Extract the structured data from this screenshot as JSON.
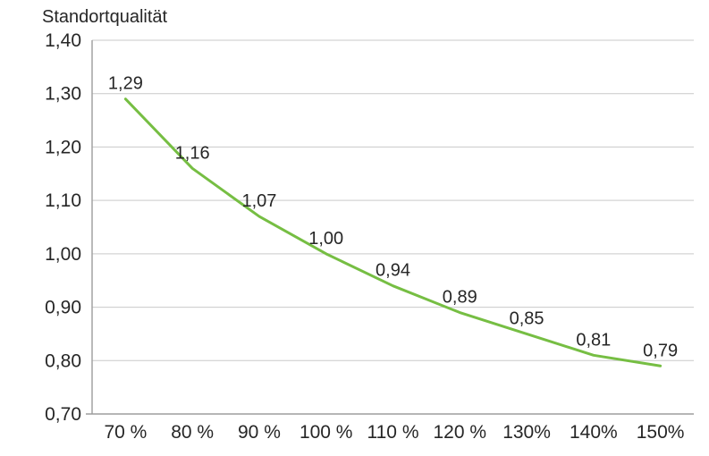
{
  "chart_data": {
    "type": "line",
    "title": "Standortqualität",
    "categories": [
      "70 %",
      "80 %",
      "90 %",
      "100 %",
      "110 %",
      "120 %",
      "130%",
      "140%",
      "150%"
    ],
    "series": [
      {
        "name": "Standortqualität",
        "values": [
          1.29,
          1.16,
          1.07,
          1.0,
          0.94,
          0.89,
          0.85,
          0.81,
          0.79
        ]
      }
    ],
    "point_labels": [
      "1,29",
      "1,16",
      "1,07",
      "1,00",
      "0,94",
      "0,89",
      "0,85",
      "0,81",
      "0,79"
    ],
    "y_ticks": [
      {
        "label": "1,40",
        "value": 1.4
      },
      {
        "label": "1,30",
        "value": 1.3
      },
      {
        "label": "1,20",
        "value": 1.2
      },
      {
        "label": "1,10",
        "value": 1.1
      },
      {
        "label": "1,00",
        "value": 1.0
      },
      {
        "label": "0,90",
        "value": 0.9
      },
      {
        "label": "0,80",
        "value": 0.8
      },
      {
        "label": "0,70",
        "value": 0.7
      }
    ],
    "ylim": [
      0.7,
      1.4
    ],
    "xlabel": "",
    "ylabel": "",
    "grid": "horizontal",
    "legend": "none",
    "line_color": "#76BE43",
    "grid_color": "#C9C9C9",
    "axis_color": "#9D9D9D",
    "text_color": "#262626",
    "background": "#FFFFFF"
  }
}
